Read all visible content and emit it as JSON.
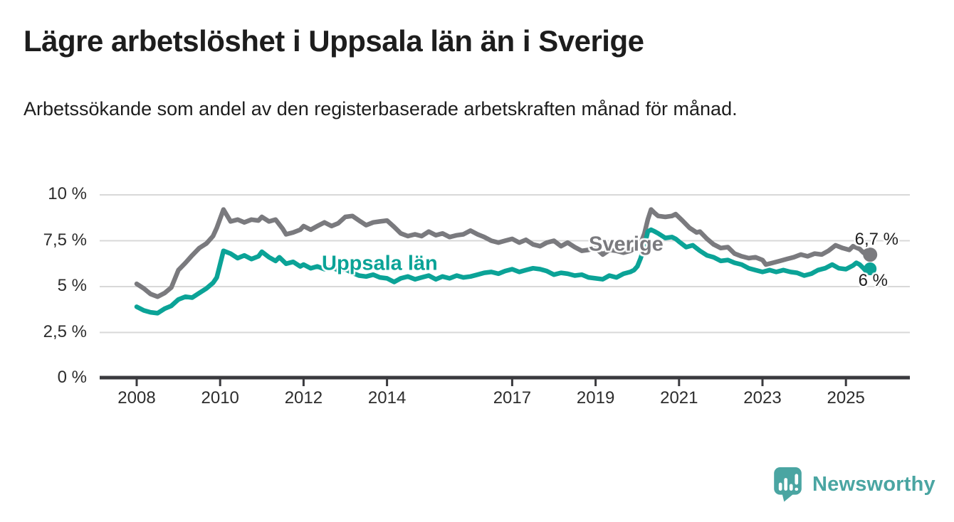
{
  "branding": {
    "logo_text": "Newsworthy",
    "logo_color": "#4aa5a2",
    "logo_icon": "bar-chart-speech-bubble-icon"
  },
  "chart_data": {
    "type": "line",
    "title": "Lägre arbetslöshet i Uppsala län än i Sverige",
    "subtitle": "Arbetssökande som andel av den registerbaserade arbetskraften månad för månad.",
    "unit": "%",
    "grid": true,
    "legend_position": "inline-labels",
    "x_axis": {
      "ticks": [
        2008,
        2010,
        2012,
        2014,
        2017,
        2019,
        2021,
        2023,
        2025
      ],
      "range_years": [
        2008,
        2025.6
      ]
    },
    "y_axis": {
      "range": [
        0,
        10
      ],
      "ticks": [
        {
          "value": 0,
          "label": "0 %"
        },
        {
          "value": 2.5,
          "label": "2,5 %"
        },
        {
          "value": 5,
          "label": "5 %"
        },
        {
          "value": 7.5,
          "label": "7,5 %"
        },
        {
          "value": 10,
          "label": "10 %"
        }
      ]
    },
    "series": [
      {
        "name": "Sverige",
        "color": "#7a7a7e",
        "end_label": "6,7 %",
        "end_value": 6.7,
        "points": [
          [
            2008.0,
            5.15
          ],
          [
            2008.17,
            4.9
          ],
          [
            2008.33,
            4.6
          ],
          [
            2008.5,
            4.45
          ],
          [
            2008.67,
            4.65
          ],
          [
            2008.83,
            4.95
          ],
          [
            2009.0,
            5.9
          ],
          [
            2009.17,
            6.3
          ],
          [
            2009.33,
            6.7
          ],
          [
            2009.5,
            7.1
          ],
          [
            2009.67,
            7.35
          ],
          [
            2009.83,
            7.75
          ],
          [
            2009.92,
            8.2
          ],
          [
            2010.08,
            9.2
          ],
          [
            2010.25,
            8.55
          ],
          [
            2010.42,
            8.65
          ],
          [
            2010.58,
            8.5
          ],
          [
            2010.75,
            8.65
          ],
          [
            2010.92,
            8.6
          ],
          [
            2011.0,
            8.8
          ],
          [
            2011.17,
            8.55
          ],
          [
            2011.33,
            8.65
          ],
          [
            2011.5,
            8.15
          ],
          [
            2011.58,
            7.85
          ],
          [
            2011.75,
            7.95
          ],
          [
            2011.92,
            8.1
          ],
          [
            2012.0,
            8.3
          ],
          [
            2012.17,
            8.1
          ],
          [
            2012.33,
            8.3
          ],
          [
            2012.5,
            8.5
          ],
          [
            2012.67,
            8.3
          ],
          [
            2012.83,
            8.45
          ],
          [
            2013.0,
            8.8
          ],
          [
            2013.17,
            8.85
          ],
          [
            2013.33,
            8.6
          ],
          [
            2013.5,
            8.35
          ],
          [
            2013.67,
            8.5
          ],
          [
            2013.83,
            8.55
          ],
          [
            2014.0,
            8.6
          ],
          [
            2014.17,
            8.25
          ],
          [
            2014.33,
            7.9
          ],
          [
            2014.5,
            7.75
          ],
          [
            2014.67,
            7.85
          ],
          [
            2014.83,
            7.75
          ],
          [
            2015.0,
            8.0
          ],
          [
            2015.17,
            7.8
          ],
          [
            2015.33,
            7.9
          ],
          [
            2015.5,
            7.7
          ],
          [
            2015.67,
            7.8
          ],
          [
            2015.83,
            7.85
          ],
          [
            2016.0,
            8.05
          ],
          [
            2016.17,
            7.85
          ],
          [
            2016.33,
            7.7
          ],
          [
            2016.5,
            7.5
          ],
          [
            2016.67,
            7.4
          ],
          [
            2016.83,
            7.5
          ],
          [
            2017.0,
            7.6
          ],
          [
            2017.17,
            7.4
          ],
          [
            2017.33,
            7.55
          ],
          [
            2017.5,
            7.3
          ],
          [
            2017.67,
            7.2
          ],
          [
            2017.83,
            7.4
          ],
          [
            2018.0,
            7.5
          ],
          [
            2018.17,
            7.2
          ],
          [
            2018.33,
            7.4
          ],
          [
            2018.5,
            7.15
          ],
          [
            2018.67,
            6.95
          ],
          [
            2018.83,
            7.0
          ],
          [
            2019.0,
            7.1
          ],
          [
            2019.17,
            6.75
          ],
          [
            2019.33,
            7.0
          ],
          [
            2019.5,
            6.95
          ],
          [
            2019.67,
            6.85
          ],
          [
            2019.83,
            6.95
          ],
          [
            2020.0,
            7.15
          ],
          [
            2020.08,
            7.35
          ],
          [
            2020.17,
            7.9
          ],
          [
            2020.25,
            8.65
          ],
          [
            2020.33,
            9.2
          ],
          [
            2020.42,
            9.0
          ],
          [
            2020.5,
            8.85
          ],
          [
            2020.67,
            8.8
          ],
          [
            2020.83,
            8.85
          ],
          [
            2020.92,
            8.95
          ],
          [
            2021.08,
            8.6
          ],
          [
            2021.25,
            8.2
          ],
          [
            2021.42,
            7.95
          ],
          [
            2021.5,
            8.0
          ],
          [
            2021.67,
            7.6
          ],
          [
            2021.83,
            7.3
          ],
          [
            2022.0,
            7.1
          ],
          [
            2022.17,
            7.15
          ],
          [
            2022.33,
            6.8
          ],
          [
            2022.5,
            6.65
          ],
          [
            2022.67,
            6.55
          ],
          [
            2022.83,
            6.6
          ],
          [
            2023.0,
            6.45
          ],
          [
            2023.08,
            6.2
          ],
          [
            2023.25,
            6.3
          ],
          [
            2023.42,
            6.4
          ],
          [
            2023.58,
            6.5
          ],
          [
            2023.75,
            6.6
          ],
          [
            2023.92,
            6.75
          ],
          [
            2024.08,
            6.65
          ],
          [
            2024.25,
            6.8
          ],
          [
            2024.42,
            6.75
          ],
          [
            2024.58,
            6.95
          ],
          [
            2024.75,
            7.25
          ],
          [
            2024.92,
            7.1
          ],
          [
            2025.08,
            7.0
          ],
          [
            2025.17,
            7.2
          ],
          [
            2025.33,
            7.05
          ],
          [
            2025.42,
            6.85
          ],
          [
            2025.5,
            6.95
          ],
          [
            2025.58,
            6.74
          ]
        ]
      },
      {
        "name": "Uppsala län",
        "color": "#0ba397",
        "end_label": "6 %",
        "end_value": 6.0,
        "points": [
          [
            2008.0,
            3.9
          ],
          [
            2008.17,
            3.7
          ],
          [
            2008.33,
            3.6
          ],
          [
            2008.5,
            3.55
          ],
          [
            2008.67,
            3.8
          ],
          [
            2008.83,
            3.95
          ],
          [
            2009.0,
            4.3
          ],
          [
            2009.17,
            4.45
          ],
          [
            2009.33,
            4.4
          ],
          [
            2009.5,
            4.65
          ],
          [
            2009.67,
            4.9
          ],
          [
            2009.83,
            5.2
          ],
          [
            2009.92,
            5.5
          ],
          [
            2010.08,
            6.95
          ],
          [
            2010.25,
            6.8
          ],
          [
            2010.42,
            6.55
          ],
          [
            2010.58,
            6.7
          ],
          [
            2010.75,
            6.5
          ],
          [
            2010.92,
            6.65
          ],
          [
            2011.0,
            6.9
          ],
          [
            2011.17,
            6.6
          ],
          [
            2011.33,
            6.4
          ],
          [
            2011.42,
            6.6
          ],
          [
            2011.58,
            6.25
          ],
          [
            2011.75,
            6.35
          ],
          [
            2011.92,
            6.1
          ],
          [
            2012.0,
            6.2
          ],
          [
            2012.17,
            6.0
          ],
          [
            2012.33,
            6.1
          ],
          [
            2012.5,
            5.95
          ],
          [
            2012.67,
            6.05
          ],
          [
            2012.83,
            5.9
          ],
          [
            2013.0,
            5.95
          ],
          [
            2013.17,
            5.75
          ],
          [
            2013.33,
            5.6
          ],
          [
            2013.5,
            5.55
          ],
          [
            2013.67,
            5.65
          ],
          [
            2013.83,
            5.5
          ],
          [
            2014.0,
            5.45
          ],
          [
            2014.17,
            5.25
          ],
          [
            2014.33,
            5.45
          ],
          [
            2014.5,
            5.55
          ],
          [
            2014.67,
            5.4
          ],
          [
            2014.83,
            5.5
          ],
          [
            2015.0,
            5.6
          ],
          [
            2015.17,
            5.4
          ],
          [
            2015.33,
            5.55
          ],
          [
            2015.5,
            5.45
          ],
          [
            2015.67,
            5.6
          ],
          [
            2015.83,
            5.5
          ],
          [
            2016.0,
            5.55
          ],
          [
            2016.17,
            5.65
          ],
          [
            2016.33,
            5.75
          ],
          [
            2016.5,
            5.8
          ],
          [
            2016.67,
            5.7
          ],
          [
            2016.83,
            5.85
          ],
          [
            2017.0,
            5.95
          ],
          [
            2017.17,
            5.8
          ],
          [
            2017.33,
            5.9
          ],
          [
            2017.5,
            6.0
          ],
          [
            2017.67,
            5.95
          ],
          [
            2017.83,
            5.85
          ],
          [
            2018.0,
            5.65
          ],
          [
            2018.17,
            5.75
          ],
          [
            2018.33,
            5.7
          ],
          [
            2018.5,
            5.6
          ],
          [
            2018.67,
            5.65
          ],
          [
            2018.83,
            5.5
          ],
          [
            2019.0,
            5.45
          ],
          [
            2019.17,
            5.4
          ],
          [
            2019.33,
            5.6
          ],
          [
            2019.5,
            5.5
          ],
          [
            2019.67,
            5.7
          ],
          [
            2019.83,
            5.8
          ],
          [
            2019.92,
            5.9
          ],
          [
            2020.0,
            6.1
          ],
          [
            2020.08,
            6.55
          ],
          [
            2020.17,
            7.2
          ],
          [
            2020.25,
            8.0
          ],
          [
            2020.33,
            8.1
          ],
          [
            2020.42,
            8.0
          ],
          [
            2020.5,
            7.9
          ],
          [
            2020.67,
            7.65
          ],
          [
            2020.83,
            7.7
          ],
          [
            2020.92,
            7.6
          ],
          [
            2021.0,
            7.45
          ],
          [
            2021.17,
            7.15
          ],
          [
            2021.33,
            7.25
          ],
          [
            2021.5,
            6.95
          ],
          [
            2021.67,
            6.7
          ],
          [
            2021.83,
            6.6
          ],
          [
            2022.0,
            6.4
          ],
          [
            2022.17,
            6.45
          ],
          [
            2022.33,
            6.3
          ],
          [
            2022.5,
            6.2
          ],
          [
            2022.67,
            6.0
          ],
          [
            2022.83,
            5.9
          ],
          [
            2023.0,
            5.8
          ],
          [
            2023.17,
            5.9
          ],
          [
            2023.33,
            5.8
          ],
          [
            2023.5,
            5.9
          ],
          [
            2023.67,
            5.8
          ],
          [
            2023.83,
            5.75
          ],
          [
            2024.0,
            5.6
          ],
          [
            2024.17,
            5.7
          ],
          [
            2024.33,
            5.9
          ],
          [
            2024.5,
            6.0
          ],
          [
            2024.67,
            6.2
          ],
          [
            2024.83,
            6.0
          ],
          [
            2025.0,
            5.95
          ],
          [
            2025.17,
            6.15
          ],
          [
            2025.25,
            6.3
          ],
          [
            2025.33,
            6.2
          ],
          [
            2025.42,
            6.0
          ],
          [
            2025.5,
            5.8
          ],
          [
            2025.58,
            5.97
          ]
        ]
      }
    ]
  }
}
